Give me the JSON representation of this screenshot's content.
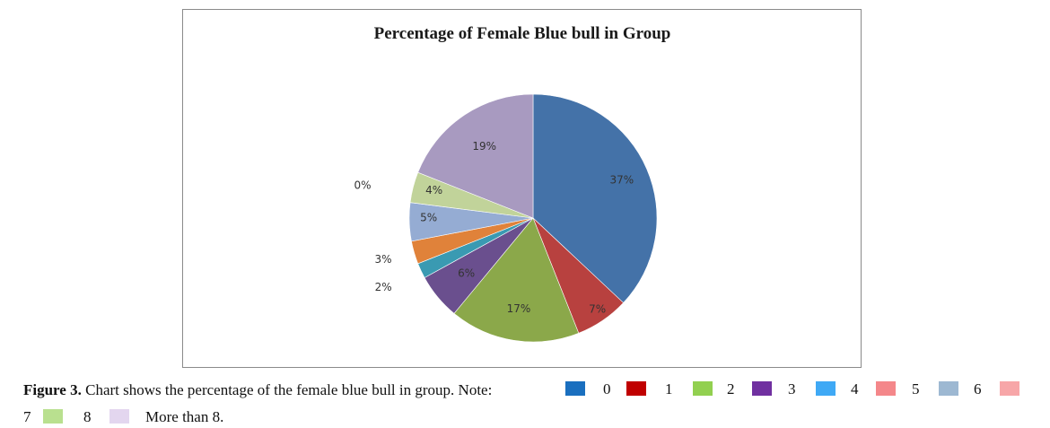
{
  "chart_data": {
    "type": "pie",
    "title": "Percentage of Female Blue bull in Group",
    "categories": [
      "0",
      "1",
      "2",
      "3",
      "4",
      "5",
      "6",
      "7",
      "8",
      "More than 8."
    ],
    "values": [
      37,
      7,
      17,
      6,
      2,
      3,
      5,
      0,
      4,
      19
    ],
    "labels": [
      "37%",
      "7%",
      "17%",
      "6%",
      "2%",
      "3%",
      "5%",
      "0%",
      "4%",
      "19%"
    ],
    "colors": [
      "#4472a8",
      "#b8413f",
      "#8ba84a",
      "#6a4f8e",
      "#3a9ab2",
      "#e0823a",
      "#95acd3",
      "#d87b78",
      "#c1d39a",
      "#a89ac0"
    ]
  },
  "caption": {
    "label": "Figure 3.",
    "text": "Chart shows the percentage of the female blue bull in group. Note:"
  },
  "legend": [
    {
      "label": "0",
      "color": "#1a6fbf"
    },
    {
      "label": "1",
      "color": "#c00000"
    },
    {
      "label": "2",
      "color": "#92d050"
    },
    {
      "label": "3",
      "color": "#7030a0"
    },
    {
      "label": "4",
      "color": "#3fa9f5"
    },
    {
      "label": "5",
      "color": "#f4878a"
    },
    {
      "label": "6",
      "color": "#9db8d2"
    },
    {
      "label": "7",
      "color": "#f7a6a8"
    },
    {
      "label": "8",
      "color": "#b9e08f"
    },
    {
      "label": "More than 8.",
      "color": "#e3d6ef"
    }
  ]
}
